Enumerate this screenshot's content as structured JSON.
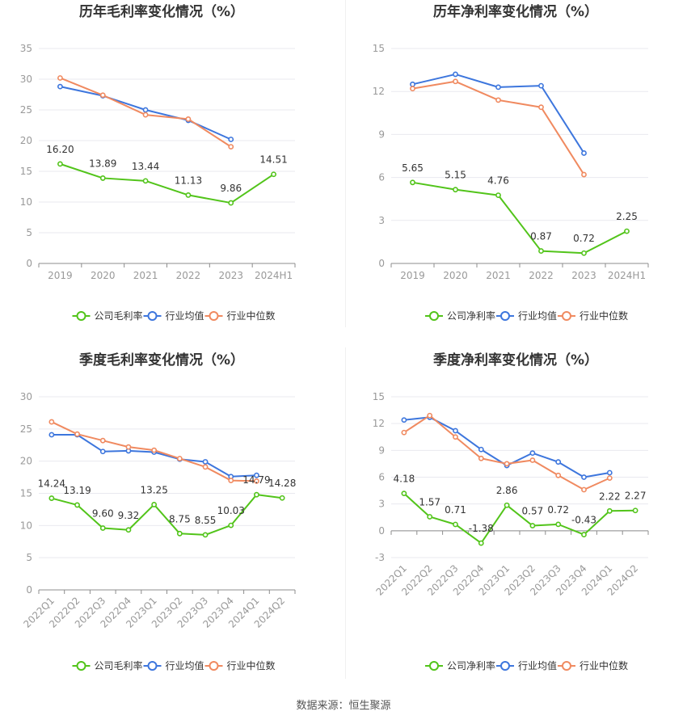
{
  "source_label": "数据来源：恒生聚源",
  "colors": {
    "company": "#52c41a",
    "industry_avg": "#3d76dd",
    "industry_median": "#f08a60",
    "axis_text": "#999999",
    "grid": "#e9e9ef",
    "label_text": "#333333",
    "title": "#333333"
  },
  "chart_data": [
    {
      "type": "line",
      "title": "历年毛利率变化情况（%）",
      "categories": [
        "2019",
        "2020",
        "2021",
        "2022",
        "2023",
        "2024H1"
      ],
      "ylim": [
        0,
        35
      ],
      "yticks": [
        0,
        5,
        10,
        15,
        20,
        25,
        30,
        35
      ],
      "grid": true,
      "legend_position": "bottom",
      "series": [
        {
          "name": "公司毛利率",
          "color": "#52c41a",
          "values": [
            16.2,
            13.89,
            13.44,
            11.13,
            9.86,
            14.51
          ],
          "labels": [
            "16.20",
            "13.89",
            "13.44",
            "11.13",
            "9.86",
            "14.51"
          ]
        },
        {
          "name": "行业均值",
          "color": "#3d76dd",
          "values": [
            28.8,
            27.3,
            25.0,
            23.3,
            20.2,
            null
          ]
        },
        {
          "name": "行业中位数",
          "color": "#f08a60",
          "values": [
            30.2,
            27.4,
            24.2,
            23.5,
            19.0,
            null
          ]
        }
      ]
    },
    {
      "type": "line",
      "title": "历年净利率变化情况（%）",
      "categories": [
        "2019",
        "2020",
        "2021",
        "2022",
        "2023",
        "2024H1"
      ],
      "ylim": [
        0,
        15
      ],
      "yticks": [
        0,
        3,
        6,
        9,
        12,
        15
      ],
      "grid": true,
      "legend_position": "bottom",
      "series": [
        {
          "name": "公司净利率",
          "color": "#52c41a",
          "values": [
            5.65,
            5.15,
            4.76,
            0.87,
            0.72,
            2.25
          ],
          "labels": [
            "5.65",
            "5.15",
            "4.76",
            "0.87",
            "0.72",
            "2.25"
          ]
        },
        {
          "name": "行业均值",
          "color": "#3d76dd",
          "values": [
            12.5,
            13.2,
            12.3,
            12.4,
            7.7,
            null
          ]
        },
        {
          "name": "行业中位数",
          "color": "#f08a60",
          "values": [
            12.2,
            12.7,
            11.4,
            10.9,
            6.2,
            null
          ]
        }
      ]
    },
    {
      "type": "line",
      "title": "季度毛利率变化情况（%）",
      "categories": [
        "2022Q1",
        "2022Q2",
        "2022Q3",
        "2022Q4",
        "2023Q1",
        "2023Q2",
        "2023Q3",
        "2023Q4",
        "2024Q1",
        "2024Q2"
      ],
      "ylim": [
        0,
        30
      ],
      "yticks": [
        0,
        5,
        10,
        15,
        20,
        25,
        30
      ],
      "grid": true,
      "legend_position": "bottom",
      "series": [
        {
          "name": "公司毛利率",
          "color": "#52c41a",
          "values": [
            14.24,
            13.19,
            9.6,
            9.32,
            13.25,
            8.75,
            8.55,
            10.03,
            14.79,
            14.28
          ],
          "labels": [
            "14.24",
            "13.19",
            "9.60",
            "9.32",
            "13.25",
            "8.75",
            "8.55",
            "10.03",
            "14.79",
            "14.28"
          ]
        },
        {
          "name": "行业均值",
          "color": "#3d76dd",
          "values": [
            24.1,
            24.1,
            21.5,
            21.6,
            21.4,
            20.3,
            19.9,
            17.6,
            17.8,
            null
          ]
        },
        {
          "name": "行业中位数",
          "color": "#f08a60",
          "values": [
            26.1,
            24.2,
            23.2,
            22.2,
            21.7,
            20.4,
            19.1,
            17.0,
            16.9,
            null
          ]
        }
      ]
    },
    {
      "type": "line",
      "title": "季度净利率变化情况（%）",
      "categories": [
        "2022Q1",
        "2022Q2",
        "2022Q3",
        "2022Q4",
        "2023Q1",
        "2023Q2",
        "2023Q3",
        "2023Q4",
        "2024Q1",
        "2024Q2"
      ],
      "ylim": [
        -3,
        15
      ],
      "yticks": [
        -3,
        0,
        3,
        6,
        9,
        12,
        15
      ],
      "grid": true,
      "legend_position": "bottom",
      "series": [
        {
          "name": "公司净利率",
          "color": "#52c41a",
          "values": [
            4.18,
            1.57,
            0.71,
            -1.38,
            2.86,
            0.57,
            0.72,
            -0.43,
            2.22,
            2.27
          ],
          "labels": [
            "4.18",
            "1.57",
            "0.71",
            "-1.38",
            "2.86",
            "0.57",
            "0.72",
            "-0.43",
            "2.22",
            "2.27"
          ]
        },
        {
          "name": "行业均值",
          "color": "#3d76dd",
          "values": [
            12.4,
            12.7,
            11.2,
            9.1,
            7.3,
            8.7,
            7.7,
            6.0,
            6.5,
            null
          ]
        },
        {
          "name": "行业中位数",
          "color": "#f08a60",
          "values": [
            11.0,
            12.9,
            10.5,
            8.1,
            7.5,
            7.9,
            6.2,
            4.6,
            5.9,
            null
          ]
        }
      ]
    }
  ]
}
